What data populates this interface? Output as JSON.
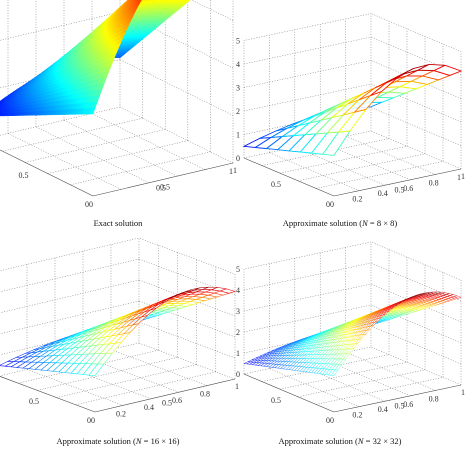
{
  "chart_data": [
    {
      "type": "surface",
      "caption": "Exact solution",
      "mesh": 60,
      "x_ticks": [
        "0.5",
        "1"
      ],
      "y_ticks": [
        "0",
        "0.5",
        "1"
      ],
      "z_ticks": [],
      "y_origin_label": "0",
      "grid": true
    },
    {
      "type": "surface",
      "caption_prefix": "Approximate solution (",
      "caption_var": "N",
      "caption_suffix": " = 8 × 8)",
      "mesh": 8,
      "x_ticks": [
        "0.5",
        "1"
      ],
      "y_ticks": [
        "0",
        "0.2",
        "0.4",
        "0.6",
        "0.8",
        "1"
      ],
      "z_ticks": [
        "0",
        "1",
        "2",
        "3",
        "4",
        "5"
      ],
      "y_origin_label": "0",
      "zlim": [
        0,
        5
      ],
      "grid": true
    },
    {
      "type": "surface",
      "caption_prefix": "Approximate solution (",
      "caption_var": "N",
      "caption_suffix": " = 16 × 16)",
      "mesh": 16,
      "x_ticks": [
        "0.5",
        "1"
      ],
      "y_ticks": [
        "0",
        "0.2",
        "0.4",
        "0.6",
        "0.8"
      ],
      "z_ticks": [
        "0",
        "1",
        "2",
        "3",
        "4",
        "5"
      ],
      "y_origin_label": "0",
      "zlim": [
        0,
        5
      ],
      "grid": true
    },
    {
      "type": "surface",
      "caption_prefix": "Approximate solution (",
      "caption_var": "N",
      "caption_suffix": " = 32 × 32)",
      "mesh": 32,
      "x_ticks": [
        "0.5",
        "1"
      ],
      "y_ticks": [
        "0",
        "0.2",
        "0.4",
        "0.6",
        "0.8"
      ],
      "z_ticks": [
        "0",
        "1",
        "2",
        "3",
        "4",
        "5"
      ],
      "y_origin_label": "0",
      "zlim": [
        0,
        5
      ],
      "grid": true
    }
  ]
}
